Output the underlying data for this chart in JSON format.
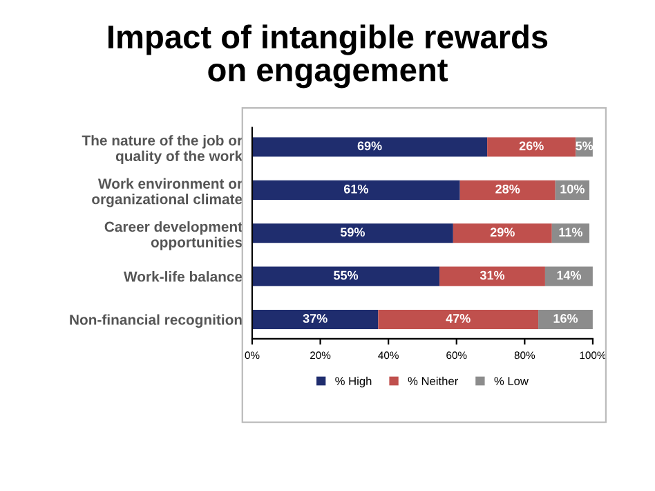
{
  "chart_data": {
    "type": "bar",
    "orientation": "horizontal",
    "stacked": true,
    "title": "Impact of intangible rewards\non engagement",
    "categories": [
      "The nature of the job or\nquality of the work",
      "Work environment or\norganizational climate",
      "Career development\nopportunities",
      "Work-life balance",
      "Non-financial recognition"
    ],
    "series": [
      {
        "name": "% High",
        "color": "#1f2d6e",
        "values": [
          69,
          61,
          59,
          55,
          37
        ],
        "value_labels": [
          "69%",
          "61%",
          "59%",
          "55%",
          "37%"
        ]
      },
      {
        "name": "% Neither",
        "color": "#c0504d",
        "values": [
          26,
          28,
          29,
          31,
          47
        ],
        "value_labels": [
          "26%",
          "28%",
          "29%",
          "31%",
          "47%"
        ]
      },
      {
        "name": "% Low",
        "color": "#8c8c8c",
        "values": [
          5,
          10,
          11,
          14,
          16
        ],
        "value_labels": [
          "5%",
          "10%",
          "11%",
          "14%",
          "16%"
        ]
      }
    ],
    "xlim": [
      0,
      100
    ],
    "xticks": [
      {
        "value": 0,
        "label": "0%"
      },
      {
        "value": 20,
        "label": "20%"
      },
      {
        "value": 40,
        "label": "40%"
      },
      {
        "value": 60,
        "label": "60%"
      },
      {
        "value": 80,
        "label": "80%"
      },
      {
        "value": 100,
        "label": "100%"
      }
    ],
    "legend": "bottom",
    "grid": false
  }
}
